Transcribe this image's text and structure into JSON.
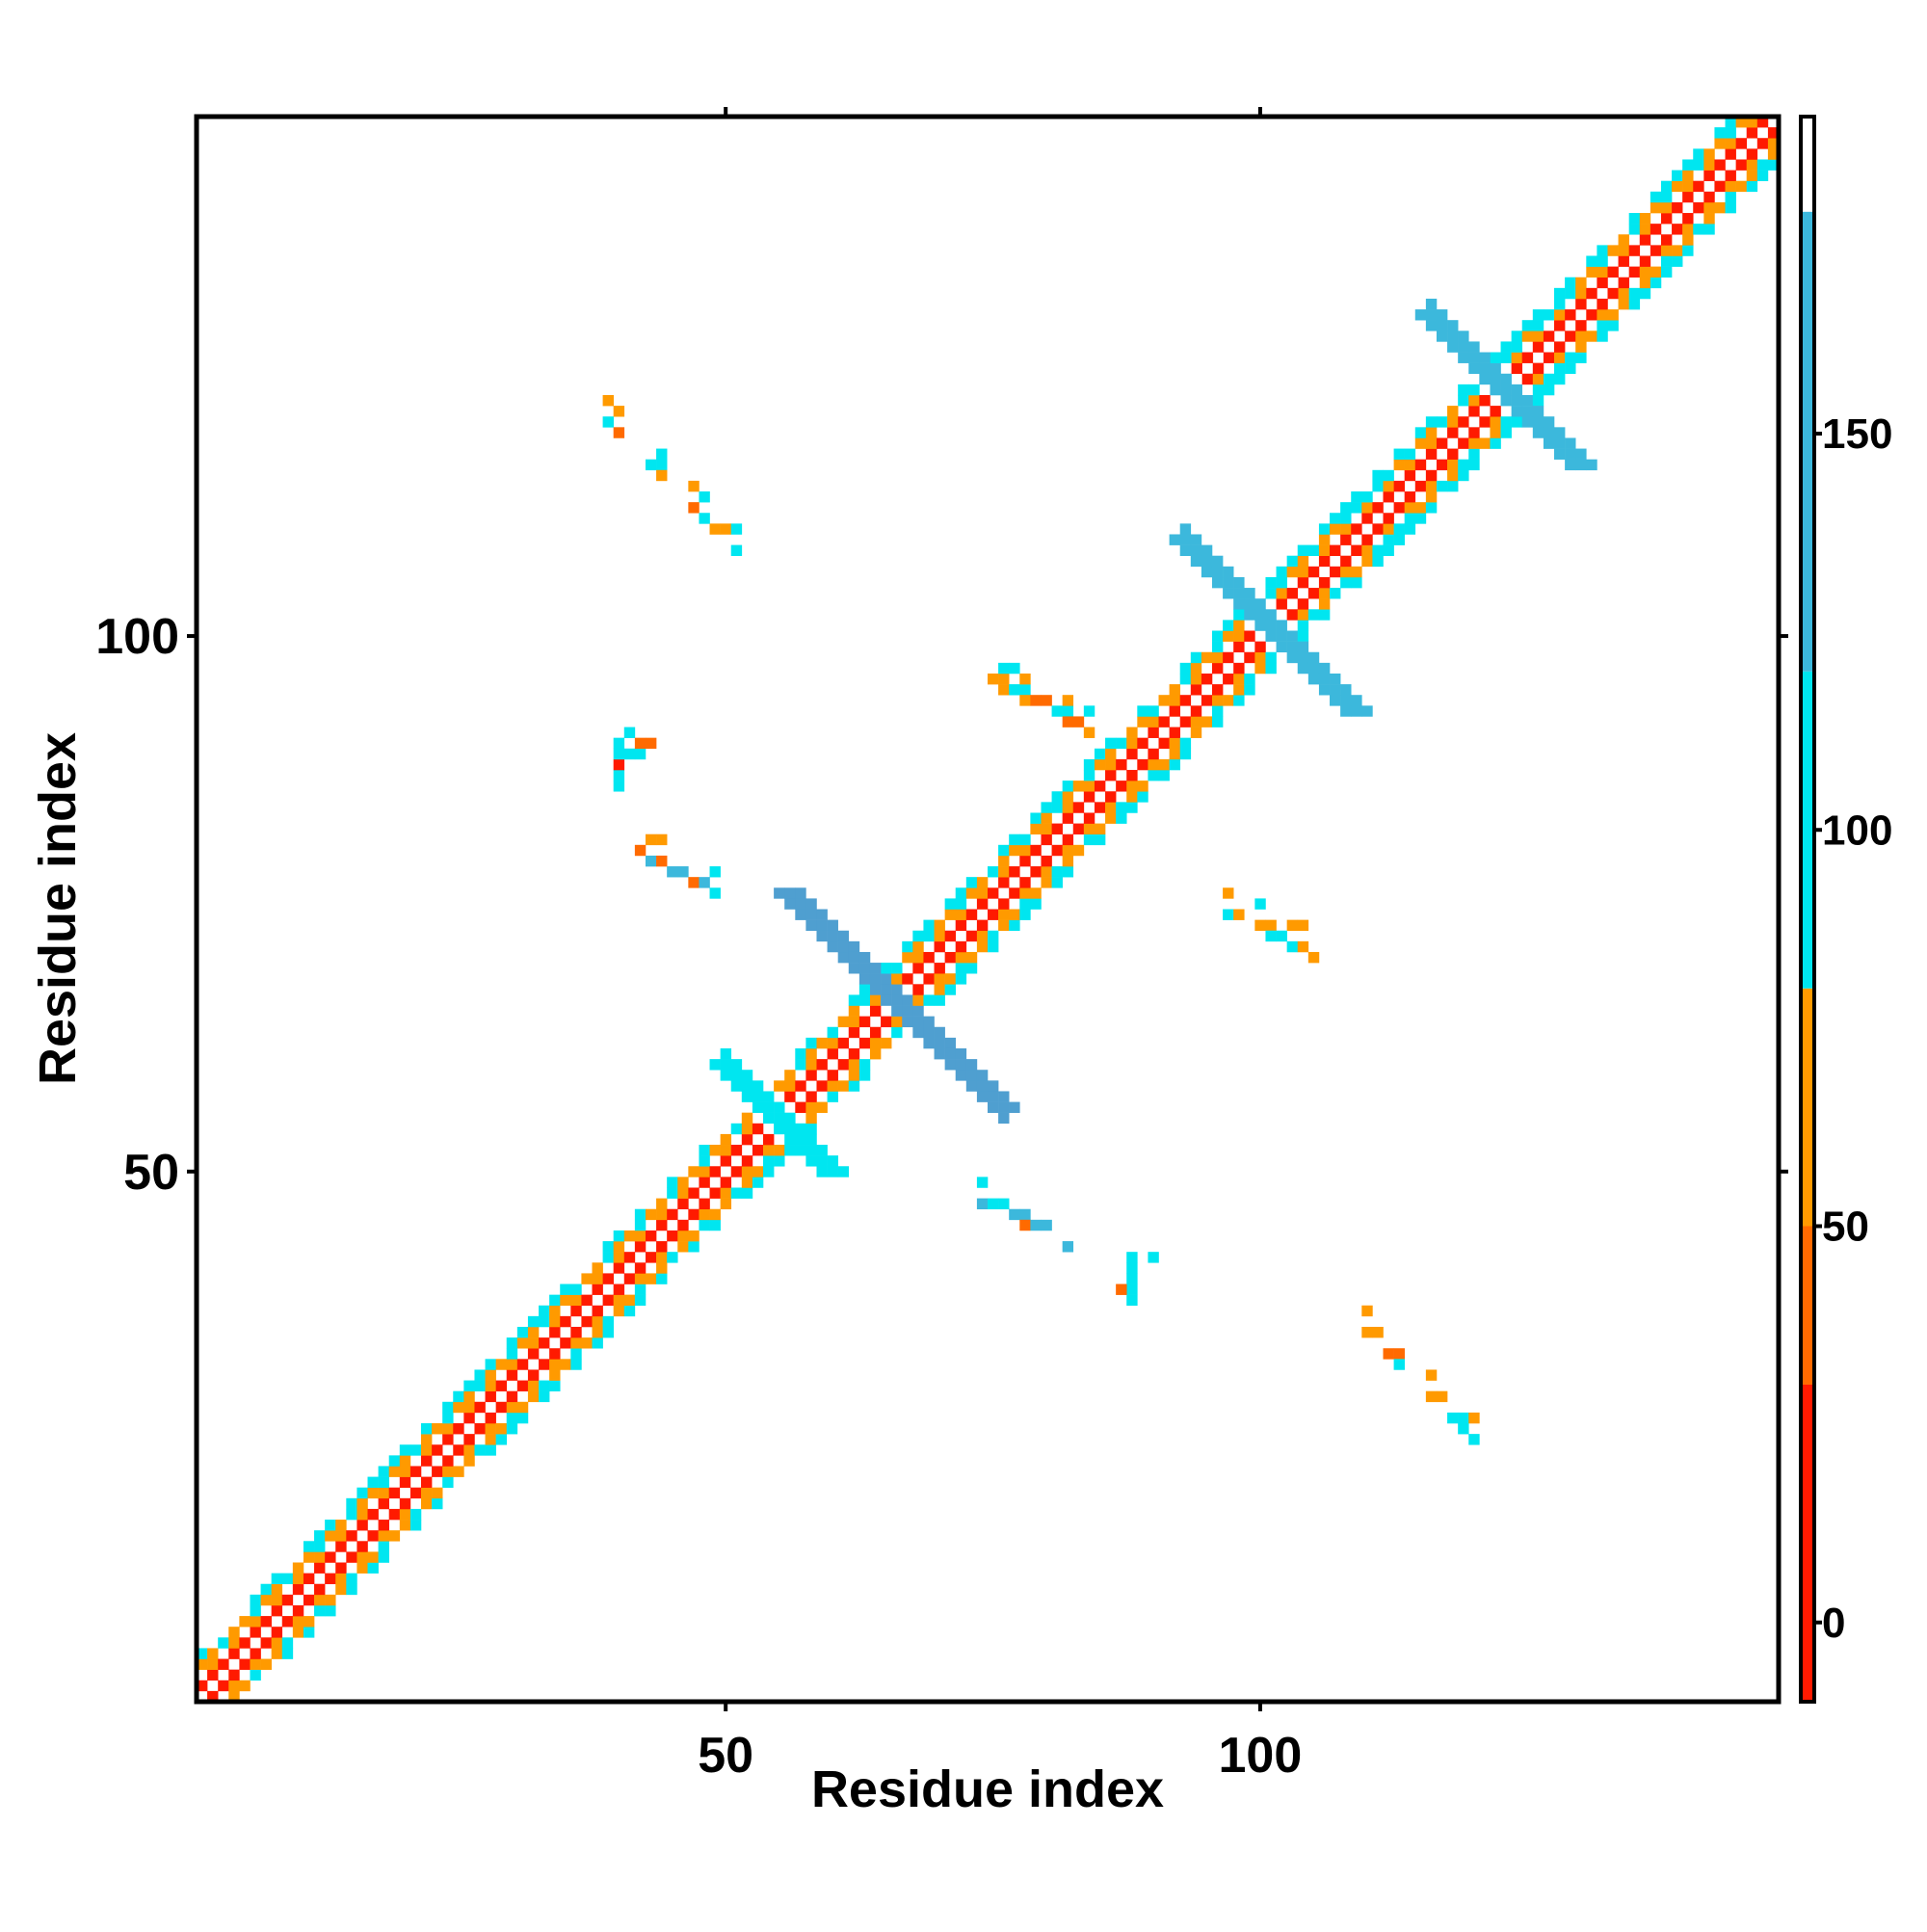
{
  "chart_data": {
    "type": "heatmap",
    "title": "",
    "xlabel": "Residue index",
    "ylabel": "Residue index",
    "xlim": [
      1,
      148
    ],
    "ylim": [
      1,
      148
    ],
    "x_ticks": [
      50,
      100
    ],
    "y_ticks": [
      50,
      100
    ],
    "grid": false,
    "colorbar": {
      "range": [
        -10,
        190
      ],
      "ticks": [
        0,
        50,
        100,
        150
      ],
      "bands": [
        {
          "from": -10,
          "to": 30,
          "color": "#ff1a00"
        },
        {
          "from": 30,
          "to": 50,
          "color": "#ff6a00"
        },
        {
          "from": 50,
          "to": 80,
          "color": "#ff9a00"
        },
        {
          "from": 80,
          "to": 120,
          "color": "#00e6f0"
        },
        {
          "from": 120,
          "to": 178,
          "color": "#3cb8dc"
        },
        {
          "from": 178,
          "to": 190,
          "color": "#ffffff"
        }
      ]
    },
    "colors": {
      "red": "#ff1a00",
      "orange_dark": "#ff6a00",
      "orange": "#ff9a00",
      "cyan": "#00e6f0",
      "light_blue": "#3cb8dc",
      "steel_blue": "#4f9fd0"
    },
    "structure": {
      "n_residues": 148,
      "diagonal_band_halfwidth": 4,
      "cross_pattern_centers": [
        {
          "i": 55,
          "j": 55,
          "arm_length": 5,
          "color_class": "cyan"
        },
        {
          "i": 66,
          "j": 66,
          "arm_length": 10,
          "color_class": "steel_blue"
        },
        {
          "i": 101,
          "j": 101,
          "arm_length": 8,
          "color_class": "light_blue"
        },
        {
          "i": 123,
          "j": 123,
          "arm_length": 7,
          "color_class": "light_blue"
        }
      ],
      "off_diagonal_strands": [
        {
          "i_start": 38,
          "j_start": 121,
          "length": 14,
          "direction": "antiparallel",
          "color_class": "orange"
        },
        {
          "i_start": 107,
          "j_start": 38,
          "length": 14,
          "direction": "antiparallel",
          "color_class": "orange"
        },
        {
          "i_start": 88,
          "j_start": 40,
          "length": 5,
          "direction": "cross",
          "color_class": "red"
        },
        {
          "i_start": 40,
          "j_start": 88,
          "length": 5,
          "direction": "cross",
          "color_class": "red"
        },
        {
          "i_start": 75,
          "j_start": 96,
          "length": 10,
          "direction": "sparse",
          "color_class": "orange"
        },
        {
          "i_start": 96,
          "j_start": 75,
          "length": 10,
          "direction": "sparse",
          "color_class": "orange"
        },
        {
          "i_start": 42,
          "j_start": 80,
          "length": 8,
          "direction": "sparse",
          "color_class": "light_blue"
        },
        {
          "i_start": 73,
          "j_start": 48,
          "length": 10,
          "direction": "sparse",
          "color_class": "light_blue"
        }
      ]
    }
  }
}
